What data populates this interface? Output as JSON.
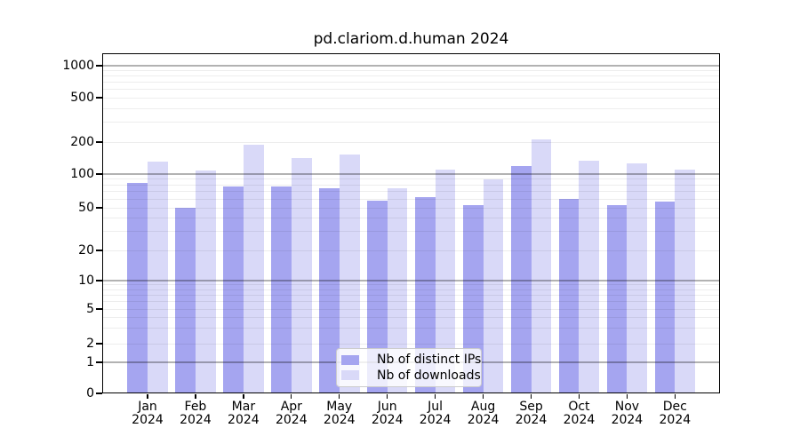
{
  "title": "pd.clariom.d.human 2024",
  "colors": {
    "bar_dark": "#a5a5f0",
    "bar_light": "#d9d9f8",
    "grid_major": "rgba(0,0,0,0.30)",
    "grid_minor": "rgba(0,0,0,0.07)",
    "axis": "#000000"
  },
  "legend": {
    "items": [
      {
        "label": "Nb of distinct IPs",
        "color": "#a5a5f0"
      },
      {
        "label": "Nb of downloads",
        "color": "#d9d9f8"
      }
    ]
  },
  "chart_data": {
    "type": "bar",
    "title": "pd.clariom.d.human 2024",
    "categories": [
      "Jan 2024",
      "Feb 2024",
      "Mar 2024",
      "Apr 2024",
      "May 2024",
      "Jun 2024",
      "Jul 2024",
      "Aug 2024",
      "Sep 2024",
      "Oct 2024",
      "Nov 2024",
      "Dec 2024"
    ],
    "x_months": [
      "Jan",
      "Feb",
      "Mar",
      "Apr",
      "May",
      "Jun",
      "Jul",
      "Aug",
      "Sep",
      "Oct",
      "Nov",
      "Dec"
    ],
    "x_year": "2024",
    "series": [
      {
        "name": "Nb of distinct IPs",
        "color": "#a5a5f0",
        "values": [
          84,
          50,
          78,
          78,
          75,
          58,
          62,
          53,
          120,
          60,
          53,
          57
        ]
      },
      {
        "name": "Nb of downloads",
        "color": "#d9d9f8",
        "values": [
          131,
          107,
          190,
          141,
          152,
          75,
          110,
          89,
          210,
          134,
          125,
          110
        ]
      }
    ],
    "y_axis": {
      "scale": "log-like (log above 1, linear 0-1)",
      "ticks": [
        0,
        1,
        2,
        5,
        10,
        20,
        50,
        100,
        200,
        500,
        1000
      ],
      "major_gridlines": [
        1,
        10,
        100,
        1000
      ],
      "ylim": [
        0,
        1300
      ]
    },
    "grid": true,
    "legend_position": "lower center"
  }
}
